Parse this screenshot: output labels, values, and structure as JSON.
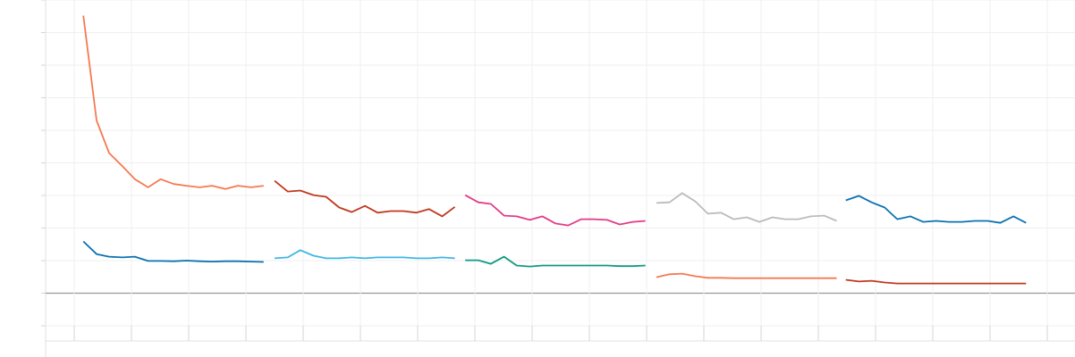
{
  "chart_data": {
    "type": "line",
    "grid": true,
    "xlim": [
      -0.5,
      17.5
    ],
    "xticks": [
      0,
      1,
      2,
      3,
      4,
      5,
      6,
      7,
      8,
      9,
      10,
      11,
      12,
      13,
      14,
      15,
      16,
      17
    ],
    "ylim": [
      -1,
      9
    ],
    "yticks": [
      -1,
      0,
      1,
      2,
      3,
      4,
      5,
      6,
      7,
      8,
      9
    ],
    "series": [
      {
        "color": "#f47a52",
        "x": [
          0.16,
          0.39,
          0.61,
          0.84,
          1.06,
          1.29,
          1.51,
          1.74,
          1.96,
          2.19,
          2.41,
          2.64,
          2.86,
          3.09,
          3.31
        ],
        "values": [
          8.52,
          5.3,
          4.3,
          3.9,
          3.5,
          3.25,
          3.5,
          3.35,
          3.3,
          3.25,
          3.3,
          3.2,
          3.3,
          3.25,
          3.3
        ]
      },
      {
        "color": "#0a72b0",
        "x": [
          0.16,
          0.39,
          0.61,
          0.84,
          1.06,
          1.29,
          1.51,
          1.74,
          1.96,
          2.19,
          2.41,
          2.64,
          2.86,
          3.09,
          3.31
        ],
        "values": [
          1.59,
          1.2,
          1.12,
          1.1,
          1.12,
          0.99,
          0.99,
          0.98,
          1.0,
          0.98,
          0.97,
          0.98,
          0.98,
          0.97,
          0.96
        ]
      },
      {
        "color": "#c0391f",
        "x": [
          3.5,
          3.73,
          3.95,
          4.18,
          4.4,
          4.63,
          4.85,
          5.08,
          5.3,
          5.53,
          5.75,
          5.98,
          6.2,
          6.43,
          6.65
        ],
        "values": [
          3.45,
          3.12,
          3.15,
          3.01,
          2.96,
          2.63,
          2.49,
          2.68,
          2.47,
          2.52,
          2.52,
          2.47,
          2.58,
          2.36,
          2.65
        ]
      },
      {
        "color": "#3fb6e4",
        "x": [
          3.5,
          3.73,
          3.95,
          4.18,
          4.4,
          4.63,
          4.85,
          5.08,
          5.3,
          5.53,
          5.75,
          5.98,
          6.2,
          6.43,
          6.65
        ],
        "values": [
          1.07,
          1.1,
          1.32,
          1.15,
          1.07,
          1.07,
          1.1,
          1.07,
          1.1,
          1.1,
          1.1,
          1.07,
          1.07,
          1.1,
          1.07
        ]
      },
      {
        "color": "#e33b86",
        "x": [
          6.83,
          7.06,
          7.28,
          7.51,
          7.73,
          7.96,
          8.18,
          8.41,
          8.63,
          8.86,
          9.08,
          9.31,
          9.53,
          9.76,
          9.98
        ],
        "values": [
          3.01,
          2.79,
          2.74,
          2.38,
          2.36,
          2.25,
          2.36,
          2.14,
          2.08,
          2.27,
          2.27,
          2.25,
          2.11,
          2.19,
          2.22
        ]
      },
      {
        "color": "#0e9a82",
        "x": [
          6.83,
          7.06,
          7.28,
          7.51,
          7.73,
          7.96,
          8.18,
          8.41,
          8.63,
          8.86,
          9.08,
          9.31,
          9.53,
          9.76,
          9.98
        ],
        "values": [
          1.01,
          1.01,
          0.9,
          1.12,
          0.85,
          0.82,
          0.85,
          0.85,
          0.85,
          0.85,
          0.85,
          0.85,
          0.83,
          0.83,
          0.85
        ]
      },
      {
        "color": "#bbbbbb",
        "x": [
          10.17,
          10.4,
          10.62,
          10.85,
          11.07,
          11.3,
          11.52,
          11.75,
          11.97,
          12.2,
          12.42,
          12.65,
          12.87,
          13.1,
          13.32
        ],
        "values": [
          2.77,
          2.79,
          3.07,
          2.82,
          2.44,
          2.47,
          2.27,
          2.33,
          2.19,
          2.33,
          2.27,
          2.27,
          2.36,
          2.38,
          2.22
        ]
      },
      {
        "color": "#f47a52",
        "x": [
          10.17,
          10.4,
          10.62,
          10.85,
          11.07,
          11.3,
          11.52,
          11.75,
          11.97,
          12.2,
          12.42,
          12.65,
          12.87,
          13.1,
          13.32
        ],
        "values": [
          0.49,
          0.58,
          0.6,
          0.52,
          0.47,
          0.47,
          0.46,
          0.46,
          0.46,
          0.46,
          0.46,
          0.46,
          0.46,
          0.46,
          0.46
        ]
      },
      {
        "color": "#0a72b0",
        "x": [
          13.48,
          13.71,
          13.93,
          14.16,
          14.38,
          14.61,
          14.83,
          15.06,
          15.28,
          15.51,
          15.73,
          15.96,
          16.18,
          16.41,
          16.63
        ],
        "values": [
          2.85,
          2.99,
          2.79,
          2.63,
          2.27,
          2.36,
          2.19,
          2.22,
          2.19,
          2.19,
          2.22,
          2.22,
          2.16,
          2.36,
          2.16
        ]
      },
      {
        "color": "#c0391f",
        "x": [
          13.48,
          13.71,
          13.93,
          14.16,
          14.38,
          14.61,
          14.83,
          15.06,
          15.28,
          15.51,
          15.73,
          15.96,
          16.18,
          16.41,
          16.63
        ],
        "values": [
          0.41,
          0.36,
          0.38,
          0.33,
          0.3,
          0.3,
          0.3,
          0.3,
          0.3,
          0.3,
          0.3,
          0.3,
          0.3,
          0.3,
          0.3
        ]
      }
    ]
  }
}
